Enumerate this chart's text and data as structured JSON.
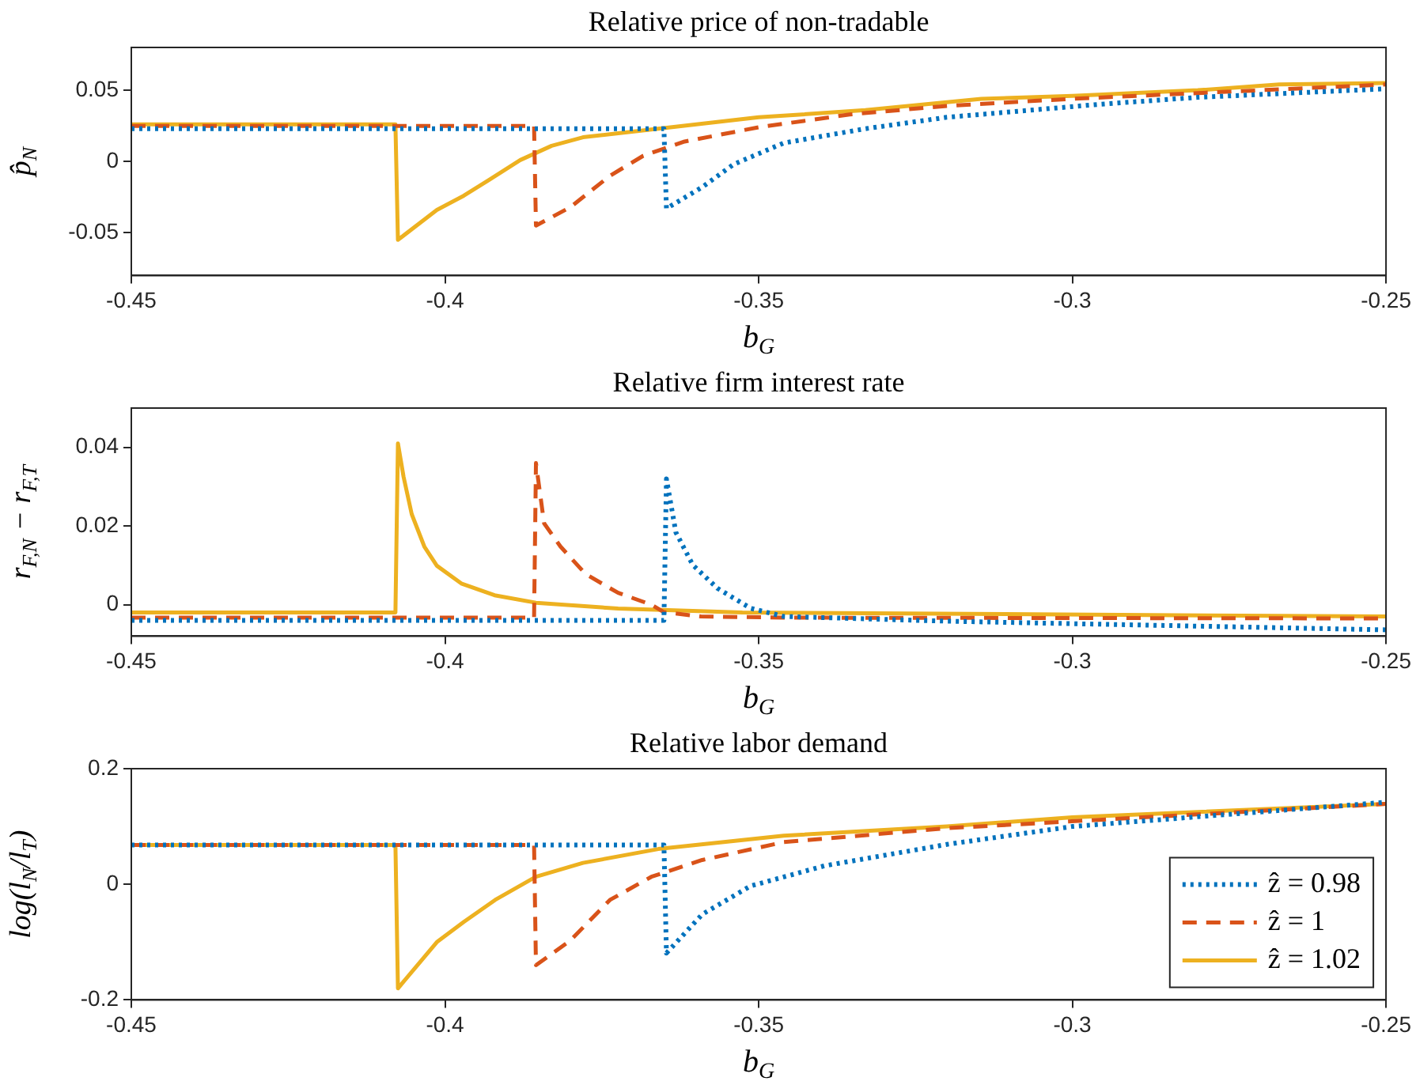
{
  "chart_data": [
    {
      "type": "line",
      "title": "Relative price of non-tradable",
      "xlabel": "b$_{G}$",
      "ylabel": "p̂$_{N}$",
      "xlim": [
        -0.45,
        -0.25
      ],
      "xticks": [
        -0.45,
        -0.4,
        -0.35,
        -0.3,
        -0.25
      ],
      "ylim": [
        -0.08,
        0.08
      ],
      "yticks": [
        -0.05,
        0,
        0.05
      ],
      "grid": false,
      "legend": false,
      "series": [
        {
          "color": "#0072bd",
          "line_style": "dotted",
          "x": [
            -0.45,
            -0.3651,
            -0.3647,
            -0.359,
            -0.354,
            -0.346,
            -0.333,
            -0.32,
            -0.296,
            -0.28,
            -0.25
          ],
          "values": [
            0.023,
            0.023,
            -0.033,
            -0.018,
            -0.002,
            0.013,
            0.023,
            0.031,
            0.04,
            0.045,
            0.051
          ]
        },
        {
          "color": "#d95319",
          "line_style": "dashed",
          "x": [
            -0.45,
            -0.3858,
            -0.3855,
            -0.38,
            -0.3737,
            -0.3684,
            -0.3618,
            -0.35,
            -0.3355,
            -0.32,
            -0.3,
            -0.28,
            -0.25
          ],
          "values": [
            0.025,
            0.025,
            -0.045,
            -0.032,
            -0.01,
            0.004,
            0.014,
            0.024,
            0.033,
            0.039,
            0.044,
            0.048,
            0.054
          ]
        },
        {
          "color": "#edb120",
          "line_style": "solid",
          "x": [
            -0.45,
            -0.4079,
            -0.4075,
            -0.4013,
            -0.397,
            -0.393,
            -0.388,
            -0.383,
            -0.378,
            -0.366,
            -0.35,
            -0.333,
            -0.3145,
            -0.3,
            -0.28,
            -0.267,
            -0.25
          ],
          "values": [
            0.026,
            0.026,
            -0.055,
            -0.034,
            -0.024,
            -0.013,
            0.001,
            0.011,
            0.017,
            0.023,
            0.031,
            0.036,
            0.044,
            0.046,
            0.05,
            0.054,
            0.055
          ]
        }
      ]
    },
    {
      "type": "line",
      "title": "Relative firm interest rate",
      "xlabel": "b$_{G}$",
      "ylabel": "r$_{F,N}$ − r$_{F,T}$",
      "xlim": [
        -0.45,
        -0.25
      ],
      "xticks": [
        -0.45,
        -0.4,
        -0.35,
        -0.3,
        -0.25
      ],
      "ylim": [
        -0.008,
        0.05
      ],
      "yticks": [
        0,
        0.02,
        0.04
      ],
      "grid": false,
      "legend": false,
      "series": [
        {
          "color": "#0072bd",
          "line_style": "dotted",
          "x": [
            -0.45,
            -0.3651,
            -0.3647,
            -0.3632,
            -0.3605,
            -0.3566,
            -0.3513,
            -0.346,
            -0.32,
            -0.25
          ],
          "values": [
            -0.004,
            -0.004,
            0.032,
            0.0184,
            0.0101,
            0.0042,
            -0.0009,
            -0.003,
            -0.0042,
            -0.0064
          ]
        },
        {
          "color": "#d95319",
          "line_style": "dashed",
          "x": [
            -0.45,
            -0.3858,
            -0.3855,
            -0.3842,
            -0.3816,
            -0.3776,
            -0.3724,
            -0.3671,
            -0.3651,
            -0.3592,
            -0.346,
            -0.25
          ],
          "values": [
            -0.0033,
            -0.0033,
            0.036,
            0.0207,
            0.0148,
            0.0078,
            0.003,
            0,
            -0.0019,
            -0.003,
            -0.0033,
            -0.0035
          ]
        },
        {
          "color": "#edb120",
          "line_style": "solid",
          "x": [
            -0.45,
            -0.4079,
            -0.4075,
            -0.4066,
            -0.4053,
            -0.4033,
            -0.4013,
            -0.3974,
            -0.3921,
            -0.3855,
            -0.3724,
            -0.3526,
            -0.25
          ],
          "values": [
            -0.002,
            -0.002,
            0.041,
            0.0325,
            0.023,
            0.0148,
            0.0099,
            0.0054,
            0.0024,
            0.0005,
            -0.001,
            -0.002,
            -0.003
          ]
        }
      ]
    },
    {
      "type": "line",
      "title": "Relative labor demand",
      "xlabel": "b$_{G}$",
      "ylabel": "log(l$_{N}$/l$_{T}$)",
      "xlim": [
        -0.45,
        -0.25
      ],
      "xticks": [
        -0.45,
        -0.4,
        -0.35,
        -0.3,
        -0.25
      ],
      "ylim": [
        -0.2,
        0.2
      ],
      "yticks": [
        -0.2,
        0,
        0.2
      ],
      "grid": false,
      "legend": "bottom right",
      "series": [
        {
          "name": "ẑ = 0.98",
          "color": "#0072bd",
          "line_style": "dotted",
          "x": [
            -0.45,
            -0.3651,
            -0.3647,
            -0.359,
            -0.3513,
            -0.3395,
            -0.32,
            -0.3,
            -0.25
          ],
          "values": [
            0.068,
            0.068,
            -0.119,
            -0.052,
            -0.003,
            0.032,
            0.069,
            0.1,
            0.142
          ]
        },
        {
          "name": "ẑ = 1",
          "color": "#d95319",
          "line_style": "dashed",
          "x": [
            -0.45,
            -0.3858,
            -0.3855,
            -0.38,
            -0.3737,
            -0.3671,
            -0.359,
            -0.346,
            -0.32,
            -0.25
          ],
          "values": [
            0.068,
            0.068,
            -0.14,
            -0.097,
            -0.027,
            0.013,
            0.042,
            0.073,
            0.097,
            0.139
          ]
        },
        {
          "name": "ẑ = 1.02",
          "color": "#edb120",
          "line_style": "solid",
          "x": [
            -0.45,
            -0.4079,
            -0.4075,
            -0.4013,
            -0.397,
            -0.392,
            -0.3855,
            -0.378,
            -0.366,
            -0.346,
            -0.32,
            -0.3,
            -0.25
          ],
          "values": [
            0.068,
            0.068,
            -0.18,
            -0.1,
            -0.065,
            -0.027,
            0.013,
            0.037,
            0.061,
            0.084,
            0.1,
            0.116,
            0.139
          ]
        }
      ]
    }
  ]
}
